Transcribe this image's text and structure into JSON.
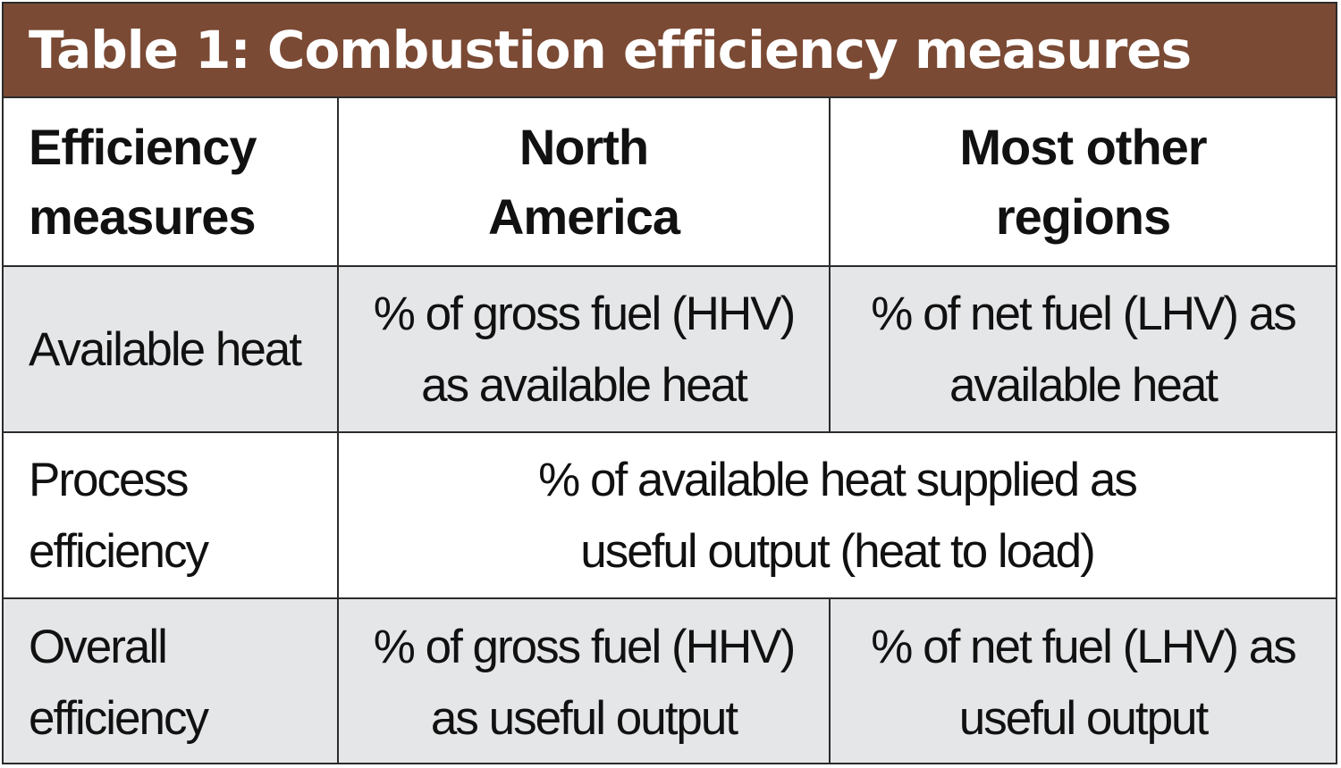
{
  "table": {
    "title": "Table 1: Combustion efficiency measures",
    "header_color": "#7b4a34",
    "shaded_row_color": "#e5e6e8",
    "columns": {
      "col1": [
        "Efficiency",
        "measures"
      ],
      "col2": [
        "North",
        "America"
      ],
      "col3": [
        "Most other",
        "regions"
      ]
    },
    "rows": [
      {
        "label": [
          "Available heat"
        ],
        "north_america": [
          "% of gross fuel (HHV)",
          "as available heat"
        ],
        "other_regions": [
          "% of net fuel (LHV) as",
          "available heat"
        ]
      },
      {
        "label": [
          "Process",
          "efficiency"
        ],
        "merged": [
          "% of available heat supplied as",
          "useful output (heat to load)"
        ]
      },
      {
        "label": [
          "Overall",
          "efficiency"
        ],
        "north_america": [
          "% of gross fuel (HHV)",
          "as useful output"
        ],
        "other_regions": [
          "% of net fuel (LHV) as",
          "useful output"
        ]
      }
    ]
  }
}
